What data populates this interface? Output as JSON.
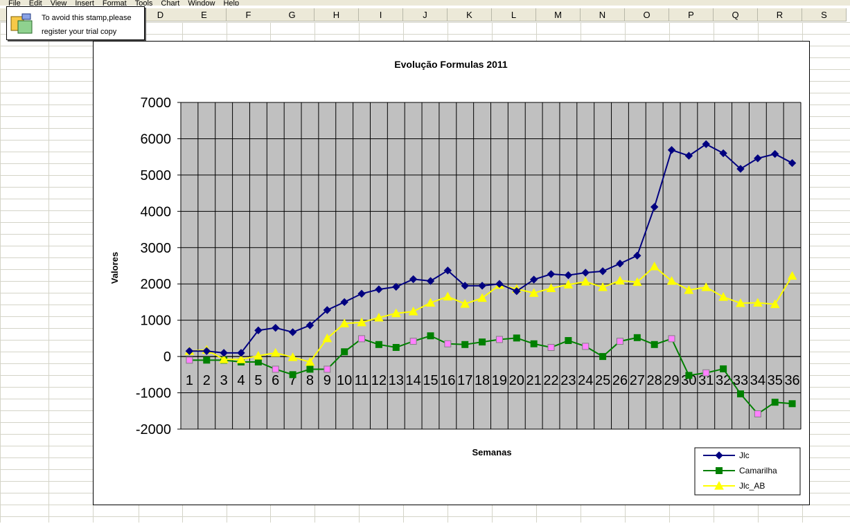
{
  "menu": [
    "File",
    "Edit",
    "View",
    "Insert",
    "Format",
    "Tools",
    "Chart",
    "Window",
    "Help"
  ],
  "columns": [
    "D",
    "E",
    "F",
    "G",
    "H",
    "I",
    "J",
    "K",
    "L",
    "M",
    "N",
    "O",
    "P",
    "Q",
    "R",
    "S"
  ],
  "stamp": {
    "line1": "To avoid this stamp,please",
    "line2": "register your trial copy"
  },
  "chart_data": {
    "type": "line",
    "title": "Evolução Formulas 2011",
    "xlabel": "Semanas",
    "ylabel": "Valores",
    "ylim": [
      -2000,
      7000
    ],
    "yticks": [
      7000,
      6000,
      5000,
      4000,
      3000,
      2000,
      1000,
      0,
      -1000,
      -2000
    ],
    "categories": [
      "1",
      "2",
      "3",
      "4",
      "5",
      "6",
      "7",
      "8",
      "9",
      "10",
      "11",
      "12",
      "13",
      "14",
      "15",
      "16",
      "17",
      "18",
      "19",
      "20",
      "21",
      "22",
      "23",
      "24",
      "25",
      "26",
      "27",
      "28",
      "29",
      "30",
      "31",
      "32",
      "33",
      "34",
      "35",
      "36"
    ],
    "grid": true,
    "legend_position": "bottom-right",
    "plot_background": "#c0c0c0",
    "series": [
      {
        "name": "Jlc",
        "color": "#000080",
        "marker": "diamond",
        "values": [
          150,
          150,
          100,
          100,
          720,
          790,
          670,
          860,
          1280,
          1500,
          1730,
          1850,
          1920,
          2130,
          2080,
          2370,
          1950,
          1950,
          2000,
          1800,
          2120,
          2270,
          2240,
          2310,
          2350,
          2560,
          2780,
          4120,
          5690,
          5530,
          5850,
          5600,
          5170,
          5460,
          5580,
          5330
        ]
      },
      {
        "name": "Camarilha",
        "color": "#008000",
        "marker": "square",
        "values": [
          -100,
          -100,
          -100,
          -150,
          -150,
          -350,
          -500,
          -350,
          -350,
          130,
          490,
          330,
          250,
          420,
          570,
          350,
          330,
          400,
          470,
          510,
          350,
          250,
          440,
          280,
          0,
          420,
          520,
          330,
          490,
          -520,
          -450,
          -340,
          -1030,
          -1580,
          -1260,
          -1300
        ]
      },
      {
        "name": "Jlc_AB",
        "color": "#ffff00",
        "marker": "triangle",
        "values": [
          150,
          180,
          -80,
          -80,
          20,
          100,
          -20,
          -150,
          500,
          910,
          940,
          1070,
          1190,
          1240,
          1480,
          1650,
          1450,
          1610,
          1970,
          1860,
          1750,
          1880,
          1980,
          2060,
          1910,
          2090,
          2050,
          2480,
          2080,
          1830,
          1910,
          1640,
          1470,
          1480,
          1440,
          2220
        ]
      }
    ]
  }
}
